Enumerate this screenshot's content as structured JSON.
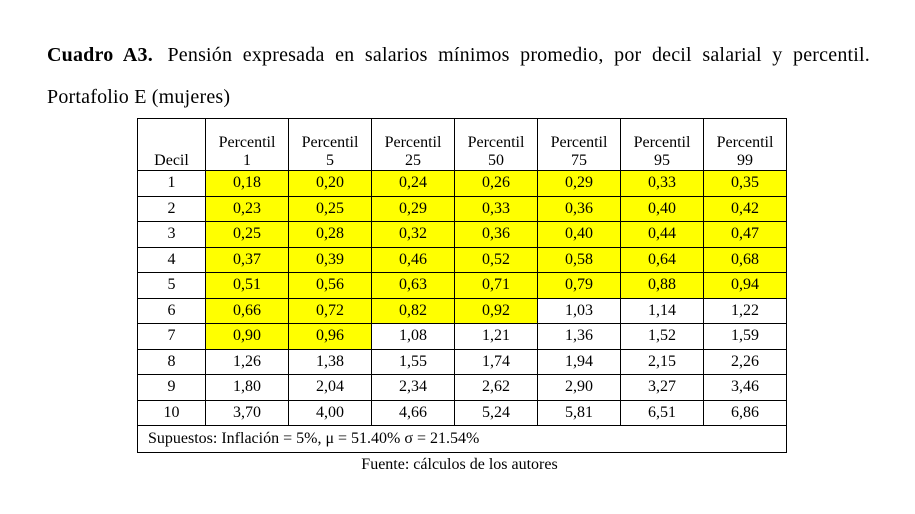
{
  "header": {
    "label": "Cuadro A3.",
    "title": "Pensión expresada en salarios mínimos promedio, por decil salarial y percentil. Portafolio E (mujeres)"
  },
  "table": {
    "columns": [
      {
        "label": "Decil"
      },
      {
        "label": "Percentil",
        "sub": "1"
      },
      {
        "label": "Percentil",
        "sub": "5"
      },
      {
        "label": "Percentil",
        "sub": "25"
      },
      {
        "label": "Percentil",
        "sub": "50"
      },
      {
        "label": "Percentil",
        "sub": "75"
      },
      {
        "label": "Percentil",
        "sub": "95"
      },
      {
        "label": "Percentil",
        "sub": "99"
      }
    ],
    "rows": [
      [
        "1",
        "0,18",
        "0,20",
        "0,24",
        "0,26",
        "0,29",
        "0,33",
        "0,35"
      ],
      [
        "2",
        "0,23",
        "0,25",
        "0,29",
        "0,33",
        "0,36",
        "0,40",
        "0,42"
      ],
      [
        "3",
        "0,25",
        "0,28",
        "0,32",
        "0,36",
        "0,40",
        "0,44",
        "0,47"
      ],
      [
        "4",
        "0,37",
        "0,39",
        "0,46",
        "0,52",
        "0,58",
        "0,64",
        "0,68"
      ],
      [
        "5",
        "0,51",
        "0,56",
        "0,63",
        "0,71",
        "0,79",
        "0,88",
        "0,94"
      ],
      [
        "6",
        "0,66",
        "0,72",
        "0,82",
        "0,92",
        "1,03",
        "1,14",
        "1,22"
      ],
      [
        "7",
        "0,90",
        "0,96",
        "1,08",
        "1,21",
        "1,36",
        "1,52",
        "1,59"
      ],
      [
        "8",
        "1,26",
        "1,38",
        "1,55",
        "1,74",
        "1,94",
        "2,15",
        "2,26"
      ],
      [
        "9",
        "1,80",
        "2,04",
        "2,34",
        "2,62",
        "2,90",
        "3,27",
        "3,46"
      ],
      [
        "10",
        "3,70",
        "4,00",
        "4,66",
        "5,24",
        "5,81",
        "6,51",
        "6,86"
      ]
    ],
    "note": "Supuestos: Inflación = 5%,  μ = 51.40% σ = 21.54%"
  },
  "source": "Fuente: cálculos de los autores"
}
